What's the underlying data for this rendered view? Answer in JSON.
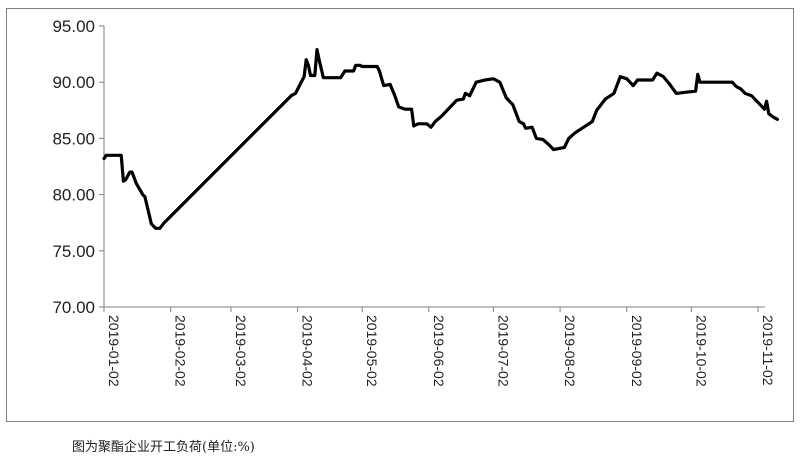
{
  "caption": "图为聚酯企业开工负荷(单位:%)",
  "chart_data": {
    "type": "line",
    "title": "",
    "xlabel": "",
    "ylabel": "",
    "ylim": [
      70,
      95
    ],
    "yticks": [
      "70.00",
      "75.00",
      "80.00",
      "85.00",
      "90.00",
      "95.00"
    ],
    "xticks": [
      "2019-01-02",
      "2019-02-02",
      "2019-03-02",
      "2019-04-02",
      "2019-05-02",
      "2019-06-02",
      "2019-07-02",
      "2019-08-02",
      "2019-09-02",
      "2019-10-02",
      "2019-11-02"
    ],
    "grid": false,
    "legend": "none",
    "line_color": "#000000",
    "series": [
      {
        "values": [
          [
            "2019-01-02",
            83.2
          ],
          [
            "2019-01-03",
            83.5
          ],
          [
            "2019-01-10",
            83.5
          ],
          [
            "2019-01-11",
            81.2
          ],
          [
            "2019-01-12",
            81.3
          ],
          [
            "2019-01-14",
            82.0
          ],
          [
            "2019-01-15",
            82.0
          ],
          [
            "2019-01-17",
            81.0
          ],
          [
            "2019-01-20",
            80.0
          ],
          [
            "2019-01-21",
            79.8
          ],
          [
            "2019-01-24",
            77.4
          ],
          [
            "2019-01-26",
            77.0
          ],
          [
            "2019-01-28",
            77.0
          ],
          [
            "2019-01-30",
            77.5
          ],
          [
            "2019-03-30",
            88.8
          ],
          [
            "2019-04-01",
            89.0
          ],
          [
            "2019-04-05",
            90.5
          ],
          [
            "2019-04-06",
            92.0
          ],
          [
            "2019-04-07",
            91.5
          ],
          [
            "2019-04-08",
            90.6
          ],
          [
            "2019-04-10",
            90.6
          ],
          [
            "2019-04-11",
            92.9
          ],
          [
            "2019-04-12",
            92.0
          ],
          [
            "2019-04-14",
            90.4
          ],
          [
            "2019-04-22",
            90.4
          ],
          [
            "2019-04-24",
            91.0
          ],
          [
            "2019-04-28",
            91.0
          ],
          [
            "2019-04-29",
            91.5
          ],
          [
            "2019-05-01",
            91.5
          ],
          [
            "2019-05-02",
            91.4
          ],
          [
            "2019-05-09",
            91.4
          ],
          [
            "2019-05-10",
            91.0
          ],
          [
            "2019-05-12",
            89.7
          ],
          [
            "2019-05-15",
            89.8
          ],
          [
            "2019-05-17",
            88.9
          ],
          [
            "2019-05-19",
            87.8
          ],
          [
            "2019-05-22",
            87.6
          ],
          [
            "2019-05-25",
            87.6
          ],
          [
            "2019-05-26",
            86.1
          ],
          [
            "2019-05-28",
            86.3
          ],
          [
            "2019-06-01",
            86.3
          ],
          [
            "2019-06-03",
            86.0
          ],
          [
            "2019-06-05",
            86.5
          ],
          [
            "2019-06-08",
            87.0
          ],
          [
            "2019-06-12",
            87.8
          ],
          [
            "2019-06-15",
            88.4
          ],
          [
            "2019-06-18",
            88.5
          ],
          [
            "2019-06-19",
            89.0
          ],
          [
            "2019-06-21",
            88.8
          ],
          [
            "2019-06-24",
            90.0
          ],
          [
            "2019-06-28",
            90.2
          ],
          [
            "2019-07-02",
            90.3
          ],
          [
            "2019-07-05",
            90.0
          ],
          [
            "2019-07-08",
            88.6
          ],
          [
            "2019-07-11",
            88.0
          ],
          [
            "2019-07-14",
            86.5
          ],
          [
            "2019-07-16",
            86.3
          ],
          [
            "2019-07-17",
            85.9
          ],
          [
            "2019-07-20",
            86.0
          ],
          [
            "2019-07-22",
            85.0
          ],
          [
            "2019-07-25",
            84.9
          ],
          [
            "2019-07-28",
            84.4
          ],
          [
            "2019-07-30",
            84.0
          ],
          [
            "2019-08-04",
            84.2
          ],
          [
            "2019-08-06",
            85.0
          ],
          [
            "2019-08-09",
            85.5
          ],
          [
            "2019-08-13",
            86.0
          ],
          [
            "2019-08-17",
            86.5
          ],
          [
            "2019-08-19",
            87.5
          ],
          [
            "2019-08-23",
            88.5
          ],
          [
            "2019-08-27",
            89.0
          ],
          [
            "2019-08-30",
            90.5
          ],
          [
            "2019-09-02",
            90.3
          ],
          [
            "2019-09-05",
            89.7
          ],
          [
            "2019-09-07",
            90.2
          ],
          [
            "2019-09-14",
            90.2
          ],
          [
            "2019-09-16",
            90.8
          ],
          [
            "2019-09-19",
            90.5
          ],
          [
            "2019-09-22",
            89.8
          ],
          [
            "2019-09-25",
            89.0
          ],
          [
            "2019-09-29",
            89.1
          ],
          [
            "2019-10-04",
            89.2
          ],
          [
            "2019-10-05",
            90.7
          ],
          [
            "2019-10-06",
            90.0
          ],
          [
            "2019-10-21",
            90.0
          ],
          [
            "2019-10-23",
            89.6
          ],
          [
            "2019-10-25",
            89.4
          ],
          [
            "2019-10-27",
            89.0
          ],
          [
            "2019-10-30",
            88.8
          ],
          [
            "2019-11-03",
            88.0
          ],
          [
            "2019-11-05",
            87.6
          ],
          [
            "2019-11-06",
            88.3
          ],
          [
            "2019-11-07",
            87.2
          ],
          [
            "2019-11-09",
            86.9
          ],
          [
            "2019-11-11",
            86.7
          ]
        ]
      }
    ]
  }
}
